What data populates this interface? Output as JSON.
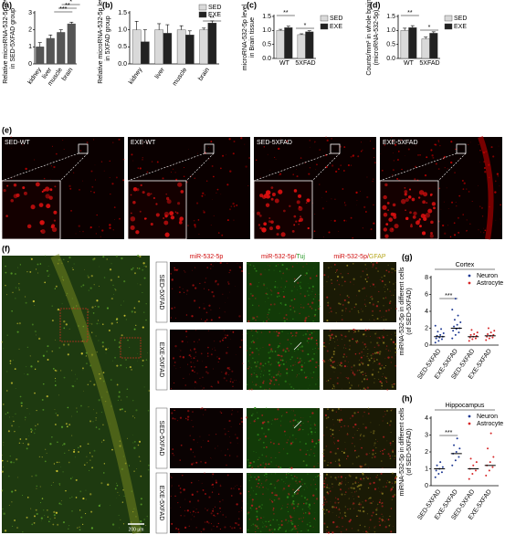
{
  "panels": {
    "a": "(a)",
    "b": "(b)",
    "c": "(c)",
    "d": "(d)",
    "e": "(e)",
    "f": "(f)",
    "g": "(g)",
    "h": "(h)"
  },
  "chart_data": [
    {
      "type": "bar",
      "ylabel": [
        "Relative microRNA-532-5p level",
        "in SED-5XFAD group"
      ],
      "categories": [
        "kidney",
        "liver",
        "muscle",
        "brain"
      ],
      "values": [
        1.0,
        1.5,
        1.85,
        2.35
      ],
      "errors": [
        0.25,
        0.2,
        0.15,
        0.1
      ],
      "color": "#555555",
      "ylim": [
        0,
        3
      ],
      "yticks": [
        0,
        1,
        2,
        3
      ],
      "annotations": [
        "***",
        "**",
        "*"
      ]
    },
    {
      "type": "bar",
      "ylabel": [
        "Relative microRNA-532-5p level",
        "in 5XFAD group"
      ],
      "categories": [
        "kidney",
        "liver",
        "muscle",
        "brain"
      ],
      "series": [
        {
          "name": "SED",
          "color": "#d9d9d9",
          "values": [
            1.0,
            1.0,
            1.0,
            1.0
          ],
          "errors": [
            0.25,
            0.18,
            0.12,
            0.05
          ]
        },
        {
          "name": "EXE",
          "color": "#222222",
          "values": [
            0.65,
            0.9,
            0.85,
            1.2
          ],
          "errors": [
            0.35,
            0.25,
            0.12,
            0.06
          ]
        }
      ],
      "ylim": [
        0,
        1.5
      ],
      "yticks": [
        {
          "value": 0,
          "label": "0.0"
        },
        {
          "value": 0.5,
          "label": "0.5"
        },
        {
          "value": 1,
          "label": "1.0"
        },
        {
          "value": 1.5,
          "label": "1.5"
        }
      ],
      "legend": "top-right",
      "annotations": [
        "**"
      ]
    },
    {
      "type": "bar",
      "ylabel": [
        "microRNA-532-5p level",
        "in Brain tissue"
      ],
      "categories": [
        "WT",
        "5XFAD"
      ],
      "series": [
        {
          "name": "SED",
          "color": "#d9d9d9",
          "values": [
            1.0,
            0.85
          ],
          "errors": [
            0.04,
            0.03
          ]
        },
        {
          "name": "EXE",
          "color": "#222222",
          "values": [
            1.1,
            0.95
          ],
          "errors": [
            0.05,
            0.04
          ]
        }
      ],
      "ylim": [
        0,
        1.5
      ],
      "yticks": [
        {
          "value": 0,
          "label": "0.0"
        },
        {
          "value": 0.5,
          "label": "0.5"
        },
        {
          "value": 1,
          "label": "1.0"
        },
        {
          "value": 1.5,
          "label": "1.5"
        }
      ],
      "legend": "right",
      "annotations": [
        "**",
        "*"
      ]
    },
    {
      "type": "bar",
      "ylabel": [
        "Counts/mm² in whole brain",
        "(microRNA-532-5p)"
      ],
      "categories": [
        "WT",
        "5XFAD"
      ],
      "series": [
        {
          "name": "SED",
          "color": "#d9d9d9",
          "values": [
            1.0,
            0.7
          ],
          "errors": [
            0.08,
            0.06
          ]
        },
        {
          "name": "EXE",
          "color": "#222222",
          "values": [
            1.1,
            0.9
          ],
          "errors": [
            0.07,
            0.05
          ]
        }
      ],
      "ylim": [
        0,
        1.5
      ],
      "yticks": [
        {
          "value": 0,
          "label": "0.0"
        },
        {
          "value": 0.5,
          "label": "0.5"
        },
        {
          "value": 1,
          "label": "1.0"
        },
        {
          "value": 1.5,
          "label": "1.5"
        }
      ],
      "legend": "right",
      "annotations": [
        "**",
        "*"
      ]
    },
    {
      "type": "strip",
      "title": "Cortex",
      "ylabel": [
        "miRNA-532-5p in different cells",
        "(of SED-5XFAD)"
      ],
      "categories": [
        "SED-5XFAD",
        "EXE-5XFAD",
        "SED-5XFAD",
        "EXE-5XFAD"
      ],
      "series": [
        {
          "name": "Neuron",
          "color": "#1f3a93",
          "values": [
            1.0,
            2.0,
            null,
            null
          ],
          "points": [
            [
              0.3,
              0.5,
              0.7,
              0.8,
              0.9,
              1.0,
              1.1,
              1.2,
              1.4,
              1.6,
              1.9,
              2.3
            ],
            [
              0.8,
              1.2,
              1.5,
              1.7,
              1.9,
              2.0,
              2.2,
              2.4,
              2.7,
              3.0,
              3.5,
              4.2,
              5.5
            ],
            null,
            null
          ]
        },
        {
          "name": "Astrocyte",
          "color": "#d62728",
          "values": [
            null,
            null,
            1.0,
            1.1
          ],
          "points": [
            null,
            null,
            [
              0.5,
              0.7,
              0.8,
              0.9,
              1.0,
              1.1,
              1.2,
              1.3,
              1.5,
              1.8
            ],
            [
              0.6,
              0.8,
              0.9,
              1.0,
              1.1,
              1.2,
              1.3,
              1.5,
              1.7,
              2.0
            ]
          ]
        }
      ],
      "ylim": [
        0,
        8
      ],
      "yticks": [
        0,
        2,
        4,
        6,
        8
      ],
      "legend": "top-right",
      "annotations": [
        "***"
      ]
    },
    {
      "type": "strip",
      "title": "Hippocampus",
      "ylabel": [
        "miRNA-532-5p in different cells",
        "(of SED-5XFAD)"
      ],
      "categories": [
        "SED-5XFAD",
        "EXE-5XFAD",
        "SED-5XFAD",
        "EXE-5XFAD"
      ],
      "series": [
        {
          "name": "Neuron",
          "color": "#1f3a93",
          "values": [
            1.0,
            1.9,
            null,
            null
          ],
          "points": [
            [
              0.5,
              0.7,
              0.8,
              0.9,
              1.0,
              1.1,
              1.2,
              1.4
            ],
            [
              1.2,
              1.5,
              1.7,
              1.9,
              2.0,
              2.2,
              2.4,
              2.8
            ],
            null,
            null
          ]
        },
        {
          "name": "Astrocyte",
          "color": "#d62728",
          "values": [
            null,
            null,
            1.0,
            1.2
          ],
          "points": [
            null,
            null,
            [
              0.4,
              0.7,
              0.9,
              1.0,
              1.2,
              1.4,
              1.6
            ],
            [
              0.6,
              0.9,
              1.1,
              1.2,
              1.4,
              1.7,
              2.2,
              3.1
            ]
          ]
        }
      ],
      "ylim": [
        0,
        4
      ],
      "yticks": [
        0,
        1,
        2,
        3,
        4
      ],
      "legend": "top-right",
      "annotations": [
        "***"
      ]
    }
  ],
  "figure_e": {
    "images": [
      "SED-WT",
      "EXE-WT",
      "SED-5XFAD",
      "EXE-5XFAD"
    ]
  },
  "figure_f": {
    "columns": [
      [
        "miR-532-5p"
      ],
      [
        "miR-532-5p/",
        "Tuj"
      ],
      [
        "miR-532-5p/",
        "GFAP"
      ]
    ],
    "rows": [
      "SED-5XFAD",
      "EXE-5XFAD",
      "SED-5XFAD",
      "EXE-5XFAD"
    ],
    "scale_bar": "200 μm"
  }
}
